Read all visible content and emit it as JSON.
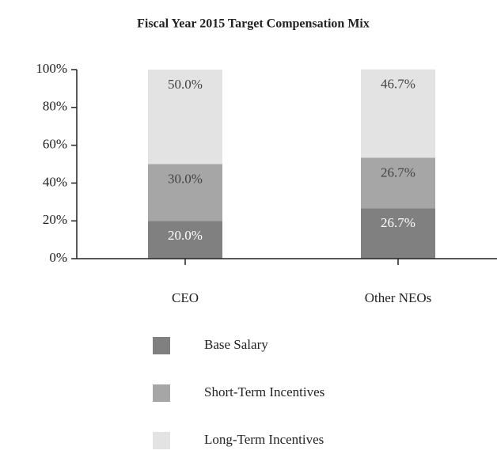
{
  "chart_data": {
    "type": "bar",
    "stacked": true,
    "title": "Fiscal Year 2015 Target Compensation Mix",
    "categories": [
      "CEO",
      "Other NEOs"
    ],
    "series": [
      {
        "name": "Base Salary",
        "color": "#808080",
        "values": [
          20,
          26.7
        ],
        "value_labels": [
          "20.0%",
          "26.7%"
        ]
      },
      {
        "name": "Short-Term Incentives",
        "color": "#a6a6a6",
        "values": [
          30,
          26.7
        ],
        "value_labels": [
          "30.0%",
          "26.7%"
        ]
      },
      {
        "name": "Long-Term Incentives",
        "color": "#e3e3e3",
        "values": [
          50,
          46.7
        ],
        "value_labels": [
          "50.0%",
          "46.7%"
        ]
      }
    ],
    "ylim": [
      0,
      100
    ],
    "yticks": [
      {
        "value": 0,
        "label": "0%"
      },
      {
        "value": 20,
        "label": "20%"
      },
      {
        "value": 40,
        "label": "40%"
      },
      {
        "value": 60,
        "label": "60%"
      },
      {
        "value": 80,
        "label": "80%"
      },
      {
        "value": 100,
        "label": "100%"
      }
    ],
    "legend": "bottom"
  }
}
